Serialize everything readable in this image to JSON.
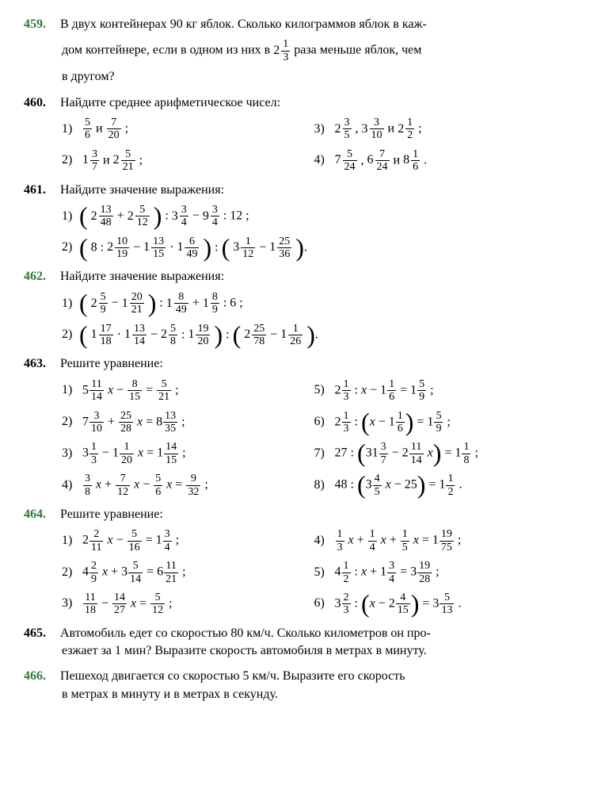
{
  "p459": {
    "num": "459.",
    "text1": "В двух контейнерах 90 кг яблок. Сколько килограммов яблок в каж-",
    "text2a": "дом контейнере, если в одном из них в ",
    "text2b": " раза меньше яблок, чем",
    "text3": "в другом?",
    "frac": {
      "w": "2",
      "n": "1",
      "d": "3"
    }
  },
  "p460": {
    "num": "460.",
    "title": "Найдите среднее арифметическое чисел:",
    "items": [
      {
        "n": "1)",
        "parts": [
          {
            "type": "frac",
            "n": "5",
            "d": "6"
          },
          {
            "type": "text",
            "v": " и "
          },
          {
            "type": "frac",
            "n": "7",
            "d": "20"
          },
          {
            "type": "text",
            "v": " ;"
          }
        ]
      },
      {
        "n": "3)",
        "parts": [
          {
            "type": "mixed",
            "w": "2",
            "n": "3",
            "d": "5"
          },
          {
            "type": "text",
            "v": " , "
          },
          {
            "type": "mixed",
            "w": "3",
            "n": "3",
            "d": "10"
          },
          {
            "type": "text",
            "v": " и "
          },
          {
            "type": "mixed",
            "w": "2",
            "n": "1",
            "d": "2"
          },
          {
            "type": "text",
            "v": " ;"
          }
        ]
      },
      {
        "n": "2)",
        "parts": [
          {
            "type": "mixed",
            "w": "1",
            "n": "3",
            "d": "7"
          },
          {
            "type": "text",
            "v": " и "
          },
          {
            "type": "mixed",
            "w": "2",
            "n": "5",
            "d": "21"
          },
          {
            "type": "text",
            "v": " ;"
          }
        ]
      },
      {
        "n": "4)",
        "parts": [
          {
            "type": "mixed",
            "w": "7",
            "n": "5",
            "d": "24"
          },
          {
            "type": "text",
            "v": " , "
          },
          {
            "type": "mixed",
            "w": "6",
            "n": "7",
            "d": "24"
          },
          {
            "type": "text",
            "v": " и "
          },
          {
            "type": "mixed",
            "w": "8",
            "n": "1",
            "d": "6"
          },
          {
            "type": "text",
            "v": " ."
          }
        ]
      }
    ]
  },
  "p461": {
    "num": "461.",
    "title": "Найдите значение выражения:",
    "i1": {
      "n": "1)",
      "a": {
        "w": "2",
        "n": "13",
        "d": "48"
      },
      "b": {
        "w": "2",
        "n": "5",
        "d": "12"
      },
      "c": {
        "w": "3",
        "n": "3",
        "d": "4"
      },
      "d": {
        "w": "9",
        "n": "3",
        "d": "4"
      },
      "end": ": 12 ;"
    },
    "i2": {
      "n": "2)",
      "a": {
        "w": "2",
        "n": "10",
        "d": "19"
      },
      "b": {
        "w": "1",
        "n": "13",
        "d": "15"
      },
      "c": {
        "w": "1",
        "n": "6",
        "d": "49"
      },
      "d": {
        "w": "3",
        "n": "1",
        "d": "12"
      },
      "e": {
        "w": "1",
        "n": "25",
        "d": "36"
      }
    }
  },
  "p462": {
    "num": "462.",
    "title": "Найдите значение выражения:",
    "i1": {
      "n": "1)",
      "a": {
        "w": "2",
        "n": "5",
        "d": "9"
      },
      "b": {
        "w": "1",
        "n": "20",
        "d": "21"
      },
      "c": {
        "w": "1",
        "n": "8",
        "d": "49"
      },
      "d": {
        "w": "1",
        "n": "8",
        "d": "9"
      },
      "end": ": 6 ;"
    },
    "i2": {
      "n": "2)",
      "a": {
        "w": "1",
        "n": "17",
        "d": "18"
      },
      "b": {
        "w": "1",
        "n": "13",
        "d": "14"
      },
      "c": {
        "w": "2",
        "n": "5",
        "d": "8"
      },
      "d": {
        "w": "1",
        "n": "19",
        "d": "20"
      },
      "e": {
        "w": "2",
        "n": "25",
        "d": "78"
      },
      "f": {
        "w": "1",
        "n": "1",
        "d": "26"
      }
    }
  },
  "p463": {
    "num": "463.",
    "title": "Решите уравнение:",
    "rows": [
      {
        "l": {
          "n": "1)",
          "html": "5<frac n='11' d='14'/> <i>x</i> − <frac n='8' d='15'/> = <frac n='5' d='21'/> ;"
        },
        "r": {
          "n": "5)",
          "html": "2<frac n='1' d='3'/> : <i>x</i> − 1<frac n='1' d='6'/> = 1<frac n='5' d='9'/> ;"
        }
      },
      {
        "l": {
          "n": "2)",
          "html": "7<frac n='3' d='10'/> + <frac n='25' d='28'/> <i>x</i> = 8<frac n='13' d='35'/> ;"
        },
        "r": {
          "n": "6)",
          "html": "2<frac n='1' d='3'/> : (<i>x</i> − 1<frac n='1' d='6'/>) = 1<frac n='5' d='9'/> ;",
          "paren": true
        }
      },
      {
        "l": {
          "n": "3)",
          "html": "3<frac n='1' d='3'/> − 1<frac n='1' d='20'/> <i>x</i> = 1<frac n='14' d='15'/> ;"
        },
        "r": {
          "n": "7)",
          "html": "27 : (31<frac n='3' d='7'/> − 2<frac n='11' d='14'/> <i>x</i>) = 1<frac n='1' d='8'/> ;",
          "paren": true
        }
      },
      {
        "l": {
          "n": "4)",
          "html": "<frac n='3' d='8'/> <i>x</i> + <frac n='7' d='12'/> <i>x</i> − <frac n='5' d='6'/> <i>x</i> = <frac n='9' d='32'/> ;"
        },
        "r": {
          "n": "8)",
          "html": "48 : (3<frac n='4' d='5'/> <i>x</i> − 25) = 1<frac n='1' d='2'/> .",
          "paren": true
        }
      }
    ]
  },
  "p464": {
    "num": "464.",
    "title": "Решите уравнение:",
    "rows": [
      {
        "l": {
          "n": "1)",
          "html": "2<frac n='2' d='11'/> <i>x</i> − <frac n='5' d='16'/> = 1<frac n='3' d='4'/> ;"
        },
        "r": {
          "n": "4)",
          "html": "<frac n='1' d='3'/> <i>x</i> + <frac n='1' d='4'/> <i>x</i> + <frac n='1' d='5'/> <i>x</i> = 1<frac n='19' d='75'/> ;"
        }
      },
      {
        "l": {
          "n": "2)",
          "html": "4<frac n='2' d='9'/> <i>x</i> + 3<frac n='5' d='14'/> = 6<frac n='11' d='21'/> ;"
        },
        "r": {
          "n": "5)",
          "html": "4<frac n='1' d='2'/> : <i>x</i> + 1<frac n='3' d='4'/> = 3<frac n='19' d='28'/> ;"
        }
      },
      {
        "l": {
          "n": "3)",
          "html": "<frac n='11' d='18'/> − <frac n='14' d='27'/> <i>x</i> = <frac n='5' d='12'/> ;"
        },
        "r": {
          "n": "6)",
          "html": "3<frac n='2' d='3'/> : (<i>x</i> − 2<frac n='4' d='15'/>) = 3<frac n='5' d='13'/> .",
          "paren": true
        }
      }
    ]
  },
  "p465": {
    "num": "465.",
    "text1": "Автомобиль едет со скоростью 80 км/ч. Сколько километров он про-",
    "text2": "езжает за 1 мин? Выразите скорость автомобиля в метрах в минуту."
  },
  "p466": {
    "num": "466.",
    "text1": "Пешеход двигается со скоростью 5 км/ч. Выразите его скорость",
    "text2": "в метрах в минуту и в метрах в секунду."
  }
}
